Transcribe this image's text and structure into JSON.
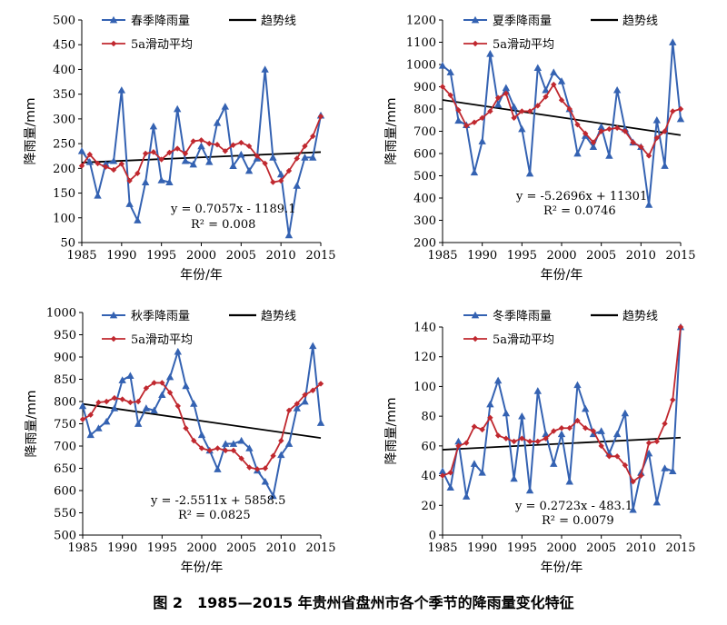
{
  "caption": "图 2　1985—2015 年贵州省盘州市各个季节的降雨量变化特征",
  "colors": {
    "actual": "#3462b2",
    "moving": "#c0282f",
    "trend": "#000000",
    "axis": "#000000"
  },
  "chart_data": [
    {
      "type": "line",
      "xlabel": "年份/年",
      "ylabel": "降雨量/mm",
      "xlim": [
        1985,
        2015
      ],
      "xticks": [
        1985,
        1990,
        1995,
        2000,
        2005,
        2010,
        2015
      ],
      "ylim": [
        50,
        500
      ],
      "yticks": [
        50,
        100,
        150,
        200,
        250,
        300,
        350,
        400,
        450,
        500
      ],
      "legend": [
        "春季降雨量",
        "趋势线",
        "5a滑动平均"
      ],
      "equation": "y = 0.7057x - 1189.1",
      "r2": "R² = 0.008",
      "trend": {
        "slope": 0.7057,
        "intercept": -1189.1
      },
      "x": [
        1985,
        1986,
        1987,
        1988,
        1989,
        1990,
        1991,
        1992,
        1993,
        1994,
        1995,
        1996,
        1997,
        1998,
        1999,
        2000,
        2001,
        2002,
        2003,
        2004,
        2005,
        2006,
        2007,
        2008,
        2009,
        2010,
        2011,
        2012,
        2013,
        2014,
        2015
      ],
      "series": [
        {
          "name": "春季降雨量",
          "values": [
            235,
            213,
            145,
            209,
            215,
            358,
            128,
            95,
            172,
            285,
            176,
            172,
            320,
            215,
            208,
            245,
            213,
            292,
            325,
            205,
            228,
            195,
            220,
            400,
            222,
            188,
            65,
            165,
            222,
            222,
            307
          ]
        },
        {
          "name": "5a滑动平均",
          "values": [
            205,
            228,
            210,
            203,
            197,
            209,
            175,
            190,
            230,
            233,
            218,
            232,
            240,
            230,
            255,
            257,
            250,
            248,
            235,
            247,
            252,
            245,
            225,
            210,
            172,
            175,
            195,
            220,
            245,
            265,
            305
          ]
        }
      ]
    },
    {
      "type": "line",
      "xlabel": "年份/年",
      "ylabel": "降雨量/mm",
      "xlim": [
        1985,
        2015
      ],
      "xticks": [
        1985,
        1990,
        1995,
        2000,
        2005,
        2010,
        2015
      ],
      "ylim": [
        200,
        1200
      ],
      "yticks": [
        200,
        300,
        400,
        500,
        600,
        700,
        800,
        900,
        1000,
        1100,
        1200
      ],
      "legend": [
        "夏季降雨量",
        "趋势线",
        "5a滑动平均"
      ],
      "equation": "y = -5.2696x + 11301",
      "r2": "R² = 0.0746",
      "trend": {
        "slope": -5.2696,
        "intercept": 11301
      },
      "x": [
        1985,
        1986,
        1987,
        1988,
        1989,
        1990,
        1991,
        1992,
        1993,
        1994,
        1995,
        1996,
        1997,
        1998,
        1999,
        2000,
        2001,
        2002,
        2003,
        2004,
        2005,
        2006,
        2007,
        2008,
        2009,
        2010,
        2011,
        2012,
        2013,
        2014,
        2015
      ],
      "series": [
        {
          "name": "夏季降雨量",
          "values": [
            995,
            965,
            748,
            728,
            515,
            655,
            1048,
            820,
            895,
            810,
            710,
            510,
            985,
            885,
            965,
            925,
            800,
            600,
            680,
            630,
            720,
            590,
            885,
            710,
            650,
            630,
            370,
            750,
            545,
            1100,
            755
          ]
        },
        {
          "name": "5a滑动平均",
          "values": [
            900,
            862,
            795,
            725,
            740,
            760,
            790,
            850,
            870,
            760,
            790,
            790,
            815,
            855,
            910,
            840,
            800,
            730,
            690,
            650,
            700,
            710,
            715,
            700,
            650,
            630,
            590,
            670,
            700,
            790,
            800
          ]
        }
      ]
    },
    {
      "type": "line",
      "xlabel": "年份/年",
      "ylabel": "降雨量/mm",
      "xlim": [
        1985,
        2015
      ],
      "xticks": [
        1985,
        1990,
        1995,
        2000,
        2005,
        2010,
        2015
      ],
      "ylim": [
        500,
        1000
      ],
      "yticks": [
        500,
        550,
        600,
        650,
        700,
        750,
        800,
        850,
        900,
        950,
        1000
      ],
      "legend": [
        "秋季降雨量",
        "趋势线",
        "5a滑动平均"
      ],
      "equation": "y = -2.5511x + 5858.5",
      "r2": "R² = 0.0825",
      "trend": {
        "slope": -2.5511,
        "intercept": 5858.5
      },
      "x": [
        1985,
        1986,
        1987,
        1988,
        1989,
        1990,
        1991,
        1992,
        1993,
        1994,
        1995,
        1996,
        1997,
        1998,
        1999,
        2000,
        2001,
        2002,
        2003,
        2004,
        2005,
        2006,
        2007,
        2008,
        2009,
        2010,
        2011,
        2012,
        2013,
        2014,
        2015
      ],
      "series": [
        {
          "name": "秋季降雨量",
          "values": [
            790,
            725,
            740,
            755,
            785,
            848,
            858,
            750,
            785,
            780,
            815,
            855,
            912,
            835,
            795,
            725,
            690,
            648,
            705,
            705,
            712,
            695,
            645,
            620,
            588,
            680,
            705,
            785,
            800,
            925,
            752
          ]
        },
        {
          "name": "5a滑动平均",
          "values": [
            760,
            770,
            798,
            800,
            808,
            805,
            798,
            800,
            830,
            842,
            842,
            820,
            790,
            740,
            712,
            695,
            690,
            695,
            690,
            690,
            672,
            652,
            648,
            650,
            678,
            712,
            780,
            795,
            815,
            825,
            840
          ]
        }
      ]
    },
    {
      "type": "line",
      "xlabel": "年份/年",
      "ylabel": "降雨量/mm",
      "xlim": [
        1985,
        2015
      ],
      "xticks": [
        1985,
        1990,
        1995,
        2000,
        2005,
        2010,
        2015
      ],
      "ylim": [
        0,
        140
      ],
      "yticks": [
        0,
        20,
        40,
        60,
        80,
        100,
        120,
        140
      ],
      "legend": [
        "冬季降雨量",
        "趋势线",
        "5a滑动平均"
      ],
      "equation": "y = 0.2723x - 483.1",
      "r2": "R² = 0.0079",
      "trend": {
        "slope": 0.2723,
        "intercept": -483.1
      },
      "x": [
        1985,
        1986,
        1987,
        1988,
        1989,
        1990,
        1991,
        1992,
        1993,
        1994,
        1995,
        1996,
        1997,
        1998,
        1999,
        2000,
        2001,
        2002,
        2003,
        2004,
        2005,
        2006,
        2007,
        2008,
        2009,
        2010,
        2011,
        2012,
        2013,
        2014,
        2015
      ],
      "series": [
        {
          "name": "冬季降雨量",
          "values": [
            43,
            32,
            63,
            26,
            48,
            42,
            88,
            104,
            82,
            38,
            80,
            30,
            97,
            68,
            48,
            68,
            36,
            101,
            85,
            68,
            70,
            55,
            68,
            82,
            17,
            42,
            55,
            22,
            45,
            43,
            140
          ]
        },
        {
          "name": "5a滑动平均",
          "values": [
            40,
            42,
            60,
            62,
            73,
            71,
            79,
            67,
            65,
            63,
            65,
            63,
            63,
            65,
            70,
            72,
            72,
            77,
            72,
            70,
            60,
            53,
            53,
            47,
            36,
            40,
            62,
            63,
            75,
            91,
            140
          ]
        }
      ]
    }
  ]
}
